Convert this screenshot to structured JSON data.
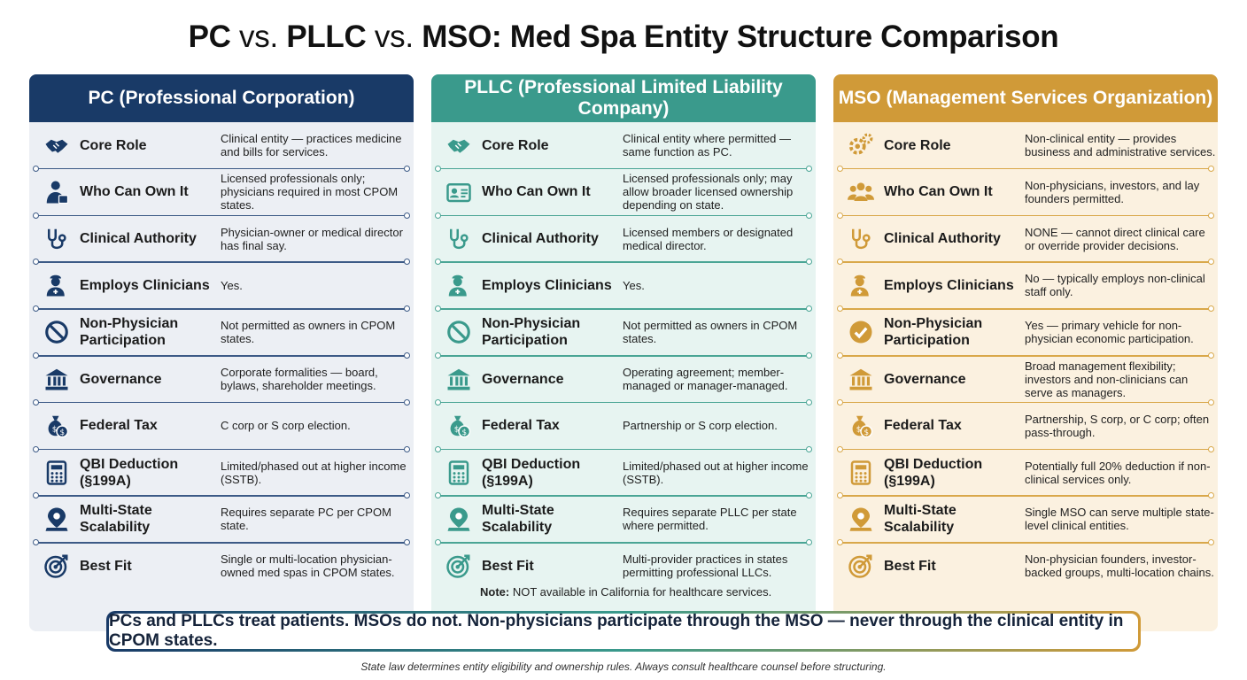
{
  "title": {
    "part1": "PC",
    "vs1": " vs. ",
    "part2": "PLLC",
    "vs2": " vs. ",
    "part3": "MSO: Med Spa Entity Structure Comparison"
  },
  "colors": {
    "pc": "#193a67",
    "pllc": "#3a9a8c",
    "mso": "#d09a38"
  },
  "columns": [
    {
      "header": "PC (Professional Corporation)",
      "rows": [
        {
          "icon": "handshake-icon",
          "label": "Core Role",
          "desc": "Clinical entity — practices medicine and bills for services."
        },
        {
          "icon": "person-badge-icon",
          "label": "Who Can Own It",
          "desc": "Licensed professionals only; physicians required in most CPOM states."
        },
        {
          "icon": "stethoscope-icon",
          "label": "Clinical Authority",
          "desc": "Physician-owner or medical director has final say."
        },
        {
          "icon": "clinician-icon",
          "label": "Employs Clinicians",
          "desc": "Yes."
        },
        {
          "icon": "prohibited-icon",
          "label": "Non-Physician Participation",
          "desc": "Not permitted as owners in CPOM states."
        },
        {
          "icon": "government-building-icon",
          "label": "Governance",
          "desc": "Corporate formalities — board, bylaws, shareholder meetings."
        },
        {
          "icon": "money-bag-icon",
          "label": "Federal Tax",
          "desc": "C corp or S corp election."
        },
        {
          "icon": "calculator-icon",
          "label": "QBI Deduction (§199A)",
          "desc": "Limited/phased out at higher income (SSTB)."
        },
        {
          "icon": "map-pin-icon",
          "label": "Multi-State Scalability",
          "desc": "Requires separate PC per CPOM state."
        },
        {
          "icon": "target-icon",
          "label": "Best Fit",
          "desc": "Single or multi-location physician-owned med spas in CPOM states."
        }
      ]
    },
    {
      "header": "PLLC (Professional Limited Liability Company)",
      "rows": [
        {
          "icon": "handshake-icon",
          "label": "Core Role",
          "desc": "Clinical entity where permitted — same function as PC."
        },
        {
          "icon": "id-card-icon",
          "label": "Who Can Own It",
          "desc": "Licensed professionals only; may allow broader licensed ownership depending on state."
        },
        {
          "icon": "stethoscope-icon",
          "label": "Clinical Authority",
          "desc": "Licensed members or designated medical director."
        },
        {
          "icon": "clinician-icon",
          "label": "Employs Clinicians",
          "desc": "Yes."
        },
        {
          "icon": "prohibited-icon",
          "label": "Non-Physician Participation",
          "desc": "Not permitted as owners in CPOM states."
        },
        {
          "icon": "government-building-icon",
          "label": "Governance",
          "desc": "Operating agreement; member-managed or manager-managed."
        },
        {
          "icon": "money-bag-icon",
          "label": "Federal Tax",
          "desc": "Partnership or S corp election."
        },
        {
          "icon": "calculator-icon",
          "label": "QBI Deduction (§199A)",
          "desc": "Limited/phased out at higher income (SSTB)."
        },
        {
          "icon": "map-pin-icon",
          "label": "Multi-State Scalability",
          "desc": "Requires separate PLLC per state where permitted."
        },
        {
          "icon": "target-icon",
          "label": "Best Fit",
          "desc": "Multi-provider practices in states permitting professional LLCs."
        }
      ],
      "note_bold": "Note:",
      "note_text": " NOT available in California for healthcare services."
    },
    {
      "header": "MSO (Management Services Organization)",
      "rows": [
        {
          "icon": "gears-icon",
          "label": "Core Role",
          "desc": "Non-clinical entity — provides business and administrative services."
        },
        {
          "icon": "group-icon",
          "label": "Who Can Own It",
          "desc": "Non-physicians, investors, and lay founders permitted."
        },
        {
          "icon": "stethoscope-icon",
          "label": "Clinical Authority",
          "desc": "NONE — cannot direct clinical care or override provider decisions."
        },
        {
          "icon": "clinician-icon",
          "label": "Employs Clinicians",
          "desc": "No — typically employs non-clinical staff only."
        },
        {
          "icon": "check-circle-icon",
          "label": "Non-Physician Participation",
          "desc": "Yes — primary vehicle for non-physician economic participation."
        },
        {
          "icon": "government-building-icon",
          "label": "Governance",
          "desc": "Broad management flexibility; investors and non-clinicians can serve as managers."
        },
        {
          "icon": "money-bag-icon",
          "label": "Federal Tax",
          "desc": "Partnership, S corp, or C corp; often pass-through."
        },
        {
          "icon": "calculator-icon",
          "label": "QBI Deduction (§199A)",
          "desc": "Potentially full 20% deduction if non-clinical services only."
        },
        {
          "icon": "map-pin-icon",
          "label": "Multi-State Scalability",
          "desc": "Single MSO can serve multiple state-level clinical entities."
        },
        {
          "icon": "target-icon",
          "label": "Best Fit",
          "desc": "Non-physician founders, investor-backed groups, multi-location chains."
        }
      ]
    }
  ],
  "banner": "PCs and PLLCs treat patients. MSOs do not. Non-physicians participate through the MSO — never through the clinical entity in CPOM states.",
  "footnote": "State law determines entity eligibility and ownership rules. Always consult healthcare counsel before structuring."
}
